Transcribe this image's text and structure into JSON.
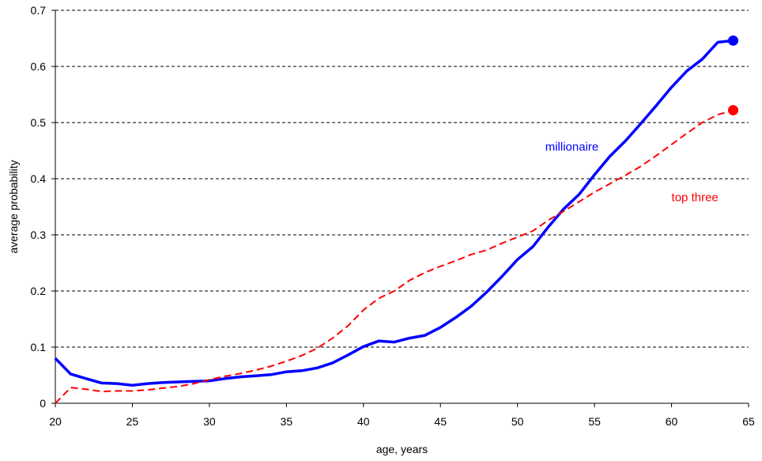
{
  "chart_data": {
    "type": "line",
    "title": "",
    "xlabel": "age, years",
    "ylabel": "average probability",
    "xlim": [
      20,
      65
    ],
    "ylim": [
      0,
      0.7
    ],
    "x_ticks": [
      20,
      25,
      30,
      35,
      40,
      45,
      50,
      55,
      60,
      65
    ],
    "y_ticks": [
      0,
      0.1,
      0.2,
      0.3,
      0.4,
      0.5,
      0.6,
      0.7
    ],
    "x_tick_labels": [
      "20",
      "25",
      "30",
      "35",
      "40",
      "45",
      "50",
      "55",
      "60",
      "65"
    ],
    "y_tick_labels": [
      "0",
      "0.1",
      "0.2",
      "0.3",
      "0.4",
      "0.5",
      "0.6",
      "0.7"
    ],
    "grid": "horizontal dashed",
    "series": [
      {
        "name": "millionaire",
        "color": "#0000ff",
        "style": "solid",
        "end_marker": "circle",
        "x": [
          20,
          21,
          22,
          23,
          24,
          25,
          26,
          27,
          28,
          29,
          30,
          31,
          32,
          33,
          34,
          35,
          36,
          37,
          38,
          39,
          40,
          41,
          42,
          43,
          44,
          45,
          46,
          47,
          48,
          49,
          50,
          51,
          52,
          53,
          54,
          55,
          56,
          57,
          58,
          59,
          60,
          61,
          62,
          63,
          64
        ],
        "values": [
          0.08,
          0.052,
          0.044,
          0.036,
          0.035,
          0.032,
          0.035,
          0.037,
          0.038,
          0.039,
          0.04,
          0.044,
          0.047,
          0.049,
          0.051,
          0.056,
          0.058,
          0.063,
          0.072,
          0.086,
          0.101,
          0.111,
          0.109,
          0.116,
          0.121,
          0.135,
          0.153,
          0.173,
          0.198,
          0.226,
          0.256,
          0.279,
          0.314,
          0.346,
          0.372,
          0.407,
          0.44,
          0.467,
          0.498,
          0.53,
          0.563,
          0.592,
          0.613,
          0.643,
          0.646
        ]
      },
      {
        "name": "top three",
        "color": "#ff0000",
        "style": "dashed",
        "end_marker": "circle",
        "x": [
          20,
          21,
          22,
          23,
          24,
          25,
          26,
          27,
          28,
          29,
          30,
          31,
          32,
          33,
          34,
          35,
          36,
          37,
          38,
          39,
          40,
          41,
          42,
          43,
          44,
          45,
          46,
          47,
          48,
          49,
          50,
          51,
          52,
          53,
          54,
          55,
          56,
          57,
          58,
          59,
          60,
          61,
          62,
          63,
          64
        ],
        "values": [
          0.0,
          0.028,
          0.025,
          0.021,
          0.022,
          0.022,
          0.024,
          0.027,
          0.03,
          0.035,
          0.042,
          0.048,
          0.053,
          0.059,
          0.066,
          0.075,
          0.085,
          0.098,
          0.116,
          0.138,
          0.166,
          0.187,
          0.2,
          0.219,
          0.233,
          0.244,
          0.254,
          0.265,
          0.273,
          0.285,
          0.296,
          0.307,
          0.326,
          0.342,
          0.359,
          0.376,
          0.391,
          0.406,
          0.422,
          0.441,
          0.461,
          0.481,
          0.5,
          0.514,
          0.522
        ]
      }
    ],
    "annotations": [
      {
        "text": "millionaire",
        "x": 51.8,
        "y": 0.45,
        "color": "#0000ff"
      },
      {
        "text": "top three",
        "x": 60,
        "y": 0.36,
        "color": "#ff0000"
      }
    ]
  }
}
